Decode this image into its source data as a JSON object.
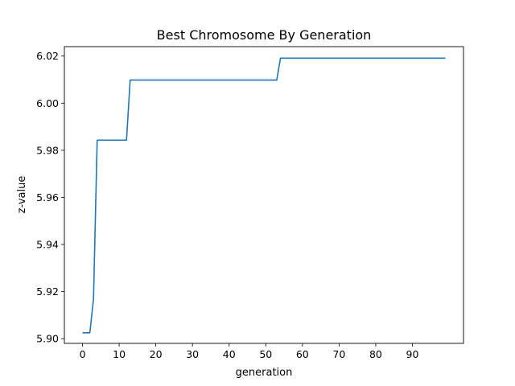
{
  "chart_data": {
    "type": "line",
    "title": "Best Chromosome By Generation",
    "xlabel": "generation",
    "ylabel": "z-value",
    "xlim": [
      -4.95,
      103.95
    ],
    "ylim": [
      5.898,
      6.024
    ],
    "xticks": [
      0,
      10,
      20,
      30,
      40,
      50,
      60,
      70,
      80,
      90
    ],
    "yticks": [
      5.9,
      5.92,
      5.94,
      5.96,
      5.98,
      6.0,
      6.02
    ],
    "ytick_labels": [
      "5.90",
      "5.92",
      "5.94",
      "5.96",
      "5.98",
      "6.00",
      "6.02"
    ],
    "grid": false,
    "legend": "none",
    "series": [
      {
        "color": "#1f77b4",
        "x": [
          0,
          1,
          2,
          3,
          4,
          5,
          6,
          7,
          8,
          9,
          10,
          11,
          12,
          13,
          14,
          53,
          54,
          99
        ],
        "y": [
          5.9025,
          5.9025,
          5.9025,
          5.917,
          5.9843,
          5.9843,
          5.9843,
          5.9843,
          5.9843,
          5.9843,
          5.9843,
          5.9843,
          5.9843,
          6.0098,
          6.0098,
          6.0098,
          6.0191,
          6.0191
        ]
      }
    ]
  }
}
